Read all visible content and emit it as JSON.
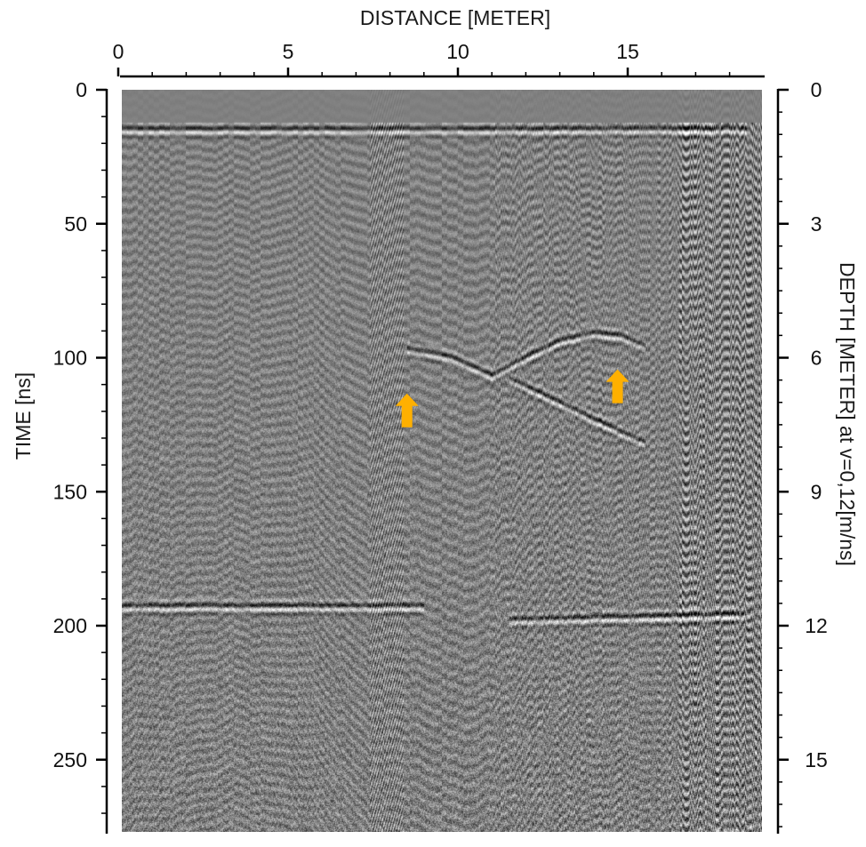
{
  "chart_data": {
    "type": "heatmap",
    "description_kind": "ground penetrating radar radargram",
    "xlabel": "DISTANCE [METER]",
    "ylabel": "TIME [ns]",
    "y2label": "DEPTH [METER] at v=0,12[m/ns]",
    "xlim": [
      0,
      18.6
    ],
    "ylim": [
      0,
      278
    ],
    "y2lim": [
      0,
      16.68
    ],
    "x_ticks": [
      0,
      5,
      10,
      15
    ],
    "x_tick_labels": [
      "0",
      "5",
      "10",
      "15"
    ],
    "y_ticks": [
      0,
      50,
      100,
      150,
      200,
      250
    ],
    "y_tick_labels": [
      "0",
      "50",
      "100",
      "150",
      "200",
      "250"
    ],
    "y2_ticks": [
      0,
      3,
      6,
      9,
      12,
      15
    ],
    "y2_tick_labels": [
      "0",
      "3",
      "6",
      "9",
      "12",
      "15"
    ],
    "velocity_m_per_ns": 0.12,
    "colormap": "grayscale",
    "reflectors": [
      {
        "name": "surface",
        "points": [
          [
            0,
            15
          ],
          [
            18.6,
            15
          ]
        ]
      },
      {
        "name": "horizontal layer",
        "points": [
          [
            0,
            193
          ],
          [
            9,
            193
          ]
        ]
      },
      {
        "name": "horizontal layer right",
        "points": [
          [
            11.5,
            198
          ],
          [
            18.6,
            196
          ]
        ]
      },
      {
        "name": "inclined interface",
        "points": [
          [
            8.5,
            97
          ],
          [
            9.8,
            100
          ],
          [
            11,
            107
          ],
          [
            12,
            100
          ],
          [
            13,
            94
          ],
          [
            14,
            91
          ],
          [
            14.8,
            92
          ],
          [
            15.5,
            96
          ]
        ]
      },
      {
        "name": "inclined interface lower",
        "points": [
          [
            11.5,
            108
          ],
          [
            12.5,
            114
          ],
          [
            13.8,
            122
          ],
          [
            14.8,
            128
          ],
          [
            15.5,
            132
          ]
        ]
      }
    ],
    "annotations": [
      {
        "type": "arrow",
        "color": "#FFB000",
        "x": 8.5,
        "y": 118,
        "direction": "up"
      },
      {
        "type": "arrow",
        "color": "#FFB000",
        "x": 14.7,
        "y": 109,
        "direction": "up"
      }
    ]
  }
}
